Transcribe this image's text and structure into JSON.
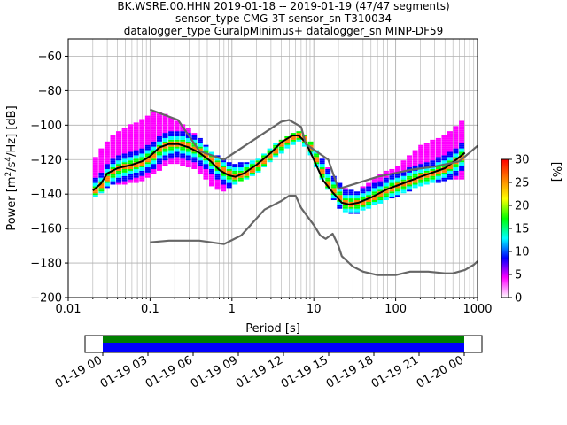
{
  "title_lines": [
    "BK.WSRE.00.HHN   2019-01-18 -- 2019-01-19  (47/47 segments)",
    "sensor_type CMG-3T sensor_sn T310034",
    "datalogger_type GuralpMinimus+ datalogger_sn MINP-DF59"
  ],
  "chart_data": {
    "type": "heatmap",
    "title": "BK.WSRE.00.HHN   2019-01-18 -- 2019-01-19  (47/47 segments)",
    "subtitle": [
      "sensor_type CMG-3T sensor_sn T310034",
      "datalogger_type GuralpMinimus+ datalogger_sn MINP-DF59"
    ],
    "xlabel": "Period [s]",
    "ylabel": "Power [m²/s⁴/Hz] [dB]",
    "xscale": "log",
    "xlim": [
      0.01,
      1000
    ],
    "ylim": [
      -200,
      -50
    ],
    "xticks": [
      0.01,
      0.1,
      1,
      10,
      100,
      1000
    ],
    "xtick_labels": [
      "0.01",
      "0.1",
      "1",
      "10",
      "100",
      "1000"
    ],
    "yticks": [
      -200,
      -180,
      -160,
      -140,
      -120,
      -100,
      -80,
      -60
    ],
    "ytick_labels": [
      "−200",
      "−180",
      "−160",
      "−140",
      "−120",
      "−100",
      "−80",
      "−60"
    ],
    "grid": true,
    "colorbar": {
      "label": "[%]",
      "range": [
        0,
        30
      ],
      "ticks": [
        0,
        5,
        10,
        15,
        20,
        25,
        30
      ],
      "tick_labels": [
        "0",
        "5",
        "10",
        "15",
        "20",
        "25",
        "30"
      ],
      "colormap": [
        "#ffffff",
        "#ff00ff",
        "#0000ff",
        "#00ffff",
        "#00ff00",
        "#ffff00",
        "#ff8000",
        "#ff0000"
      ]
    },
    "series": [
      {
        "name": "",
        "role": "mode",
        "color": "#000000",
        "points": [
          [
            0.02,
            -138
          ],
          [
            0.025,
            -134
          ],
          [
            0.03,
            -128
          ],
          [
            0.04,
            -125
          ],
          [
            0.06,
            -123
          ],
          [
            0.08,
            -121
          ],
          [
            0.1,
            -118
          ],
          [
            0.13,
            -113
          ],
          [
            0.17,
            -111
          ],
          [
            0.22,
            -111
          ],
          [
            0.3,
            -113
          ],
          [
            0.4,
            -116
          ],
          [
            0.55,
            -121
          ],
          [
            0.7,
            -126
          ],
          [
            0.9,
            -129
          ],
          [
            1.1,
            -130
          ],
          [
            1.4,
            -128
          ],
          [
            2,
            -123
          ],
          [
            3,
            -116
          ],
          [
            4,
            -110
          ],
          [
            5.5,
            -106
          ],
          [
            6.5,
            -106
          ],
          [
            8,
            -110
          ],
          [
            10,
            -120
          ],
          [
            13,
            -132
          ],
          [
            17,
            -139
          ],
          [
            22,
            -145
          ],
          [
            27,
            -146
          ],
          [
            35,
            -145
          ],
          [
            50,
            -142
          ],
          [
            80,
            -137
          ],
          [
            120,
            -134
          ],
          [
            200,
            -130
          ],
          [
            400,
            -125
          ],
          [
            550,
            -120
          ],
          [
            700,
            -116
          ]
        ]
      },
      {
        "name": "",
        "role": "new-high-noise-model",
        "color": "#666666",
        "points": [
          [
            0.1,
            -91
          ],
          [
            0.17,
            -95
          ],
          [
            0.22,
            -97
          ],
          [
            0.4,
            -115
          ],
          [
            0.8,
            -120
          ],
          [
            4,
            -98
          ],
          [
            5,
            -97
          ],
          [
            7,
            -101
          ],
          [
            8,
            -111
          ],
          [
            15,
            -120
          ],
          [
            20,
            -137
          ],
          [
            60,
            -130
          ],
          [
            150,
            -126
          ],
          [
            300,
            -124
          ],
          [
            600,
            -121
          ],
          [
            1000,
            -112
          ]
        ]
      },
      {
        "name": "",
        "role": "new-low-noise-model",
        "color": "#666666",
        "points": [
          [
            0.1,
            -168
          ],
          [
            0.17,
            -167
          ],
          [
            0.4,
            -167
          ],
          [
            0.8,
            -169
          ],
          [
            1.3,
            -164
          ],
          [
            2.5,
            -149
          ],
          [
            4,
            -144
          ],
          [
            5,
            -141
          ],
          [
            6,
            -141
          ],
          [
            7,
            -148
          ],
          [
            10,
            -158
          ],
          [
            12,
            -164
          ],
          [
            14,
            -166
          ],
          [
            17,
            -163
          ],
          [
            20,
            -170
          ],
          [
            22,
            -176
          ],
          [
            30,
            -182
          ],
          [
            40,
            -185
          ],
          [
            60,
            -187
          ],
          [
            100,
            -187
          ],
          [
            150,
            -185
          ],
          [
            250,
            -185
          ],
          [
            400,
            -186
          ],
          [
            500,
            -186
          ],
          [
            700,
            -184
          ],
          [
            900,
            -181
          ],
          [
            1000,
            -179
          ]
        ]
      }
    ],
    "histogram_envelope": [
      [
        0.02,
        -141,
        -119
      ],
      [
        0.03,
        -134,
        -108
      ],
      [
        0.05,
        -133,
        -101
      ],
      [
        0.08,
        -131,
        -97
      ],
      [
        0.1,
        -128,
        -93
      ],
      [
        0.15,
        -122,
        -95
      ],
      [
        0.2,
        -121,
        -99
      ],
      [
        0.3,
        -124,
        -104
      ],
      [
        0.4,
        -128,
        -110
      ],
      [
        0.5,
        -134,
        -116
      ],
      [
        0.7,
        -138,
        -120
      ],
      [
        1,
        -134,
        -124
      ],
      [
        2,
        -126,
        -120
      ],
      [
        4,
        -114,
        -108
      ],
      [
        6,
        -108,
        -104
      ],
      [
        8,
        -114,
        -108
      ],
      [
        10,
        -124,
        -116
      ],
      [
        15,
        -140,
        -128
      ],
      [
        20,
        -149,
        -136
      ],
      [
        30,
        -151,
        -140
      ],
      [
        50,
        -146,
        -132
      ],
      [
        100,
        -140,
        -124
      ],
      [
        200,
        -134,
        -112
      ],
      [
        400,
        -131,
        -106
      ],
      [
        700,
        -130,
        -95
      ]
    ],
    "time_axis": {
      "tick_labels": [
        "01-19 00",
        "01-19 03",
        "01-19 06",
        "01-19 09",
        "01-19 12",
        "01-19 15",
        "01-19 18",
        "01-19 21",
        "01-20 00"
      ],
      "coverage_colors": [
        "#008000",
        "#0000ff"
      ]
    }
  }
}
